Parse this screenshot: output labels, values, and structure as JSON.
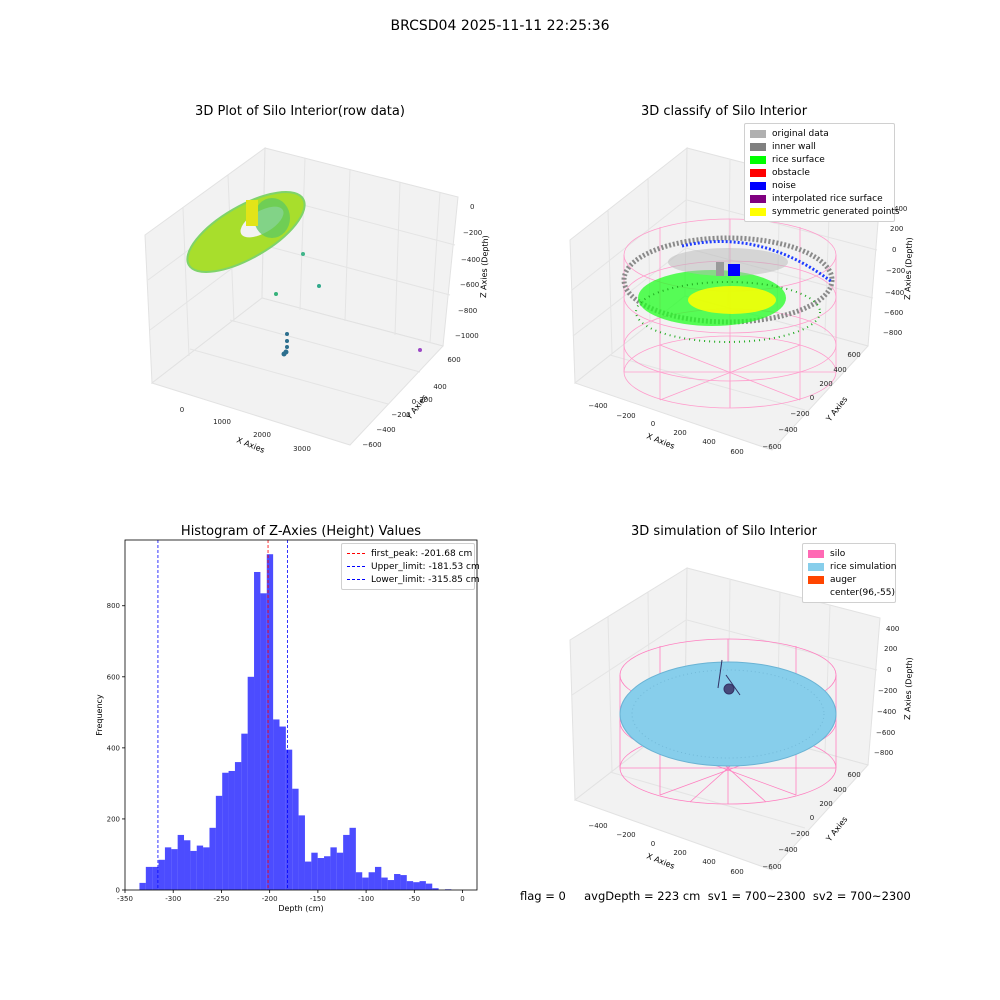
{
  "figure": {
    "title": "BRCSD04 2025-11-11 22:25:36",
    "footer": "flag = 0     avgDepth = 223 cm  sv1 = 700~2300  sv2 = 700~2300"
  },
  "plots": {
    "raw": {
      "title": "3D Plot of Silo Interior(row data)",
      "xlabel": "X Axies",
      "ylabel": "Y Axies",
      "zlabel": "Z Axies (Depth)",
      "xticks": [
        "0",
        "1000",
        "2000",
        "3000"
      ],
      "yticks": [
        "600",
        "400",
        "200",
        "0",
        "−200",
        "−400",
        "−600"
      ],
      "zticks": [
        "0",
        "−200",
        "−400",
        "−600",
        "−800",
        "−1000"
      ]
    },
    "classify": {
      "title": "3D classify of Silo Interior",
      "xlabel": "X Axies",
      "ylabel": "Y Axies",
      "zlabel": "Z Axies (Depth)",
      "xticks": [
        "−400",
        "−200",
        "0",
        "200",
        "400",
        "600"
      ],
      "yticks": [
        "600",
        "400",
        "200",
        "0",
        "−200",
        "−400",
        "−600"
      ],
      "zticks": [
        "400",
        "200",
        "0",
        "−200",
        "−400",
        "−600",
        "−800"
      ],
      "legend": [
        {
          "label": "original data",
          "color": "#b0b0b0"
        },
        {
          "label": "inner wall",
          "color": "#808080"
        },
        {
          "label": "rice surface",
          "color": "#00ff00"
        },
        {
          "label": "obstacle",
          "color": "#ff0000"
        },
        {
          "label": "noise",
          "color": "#0000ff"
        },
        {
          "label": "interpolated rice surface",
          "color": "#800080"
        },
        {
          "label": "symmetric generated points",
          "color": "#ffff00"
        }
      ]
    },
    "simulation": {
      "title": "3D simulation of Silo Interior",
      "xlabel": "X Axies",
      "ylabel": "Y Axies",
      "zlabel": "Z Axies (Depth)",
      "xticks": [
        "−400",
        "−200",
        "0",
        "200",
        "400",
        "600"
      ],
      "yticks": [
        "600",
        "400",
        "200",
        "0",
        "−200",
        "−400",
        "−600"
      ],
      "zticks": [
        "400",
        "200",
        "0",
        "−200",
        "−400",
        "−600",
        "−800"
      ],
      "legend": [
        {
          "label": "silo",
          "color": "#ff69b4"
        },
        {
          "label": "rice simulation",
          "color": "#87ceeb"
        },
        {
          "label": "auger",
          "color": "#ff4500"
        },
        {
          "label": "center(96,-55)",
          "color": ""
        }
      ]
    }
  },
  "chart_data": [
    {
      "type": "histogram",
      "title": "Histogram of Z-Axies (Height) Values",
      "xlabel": "Depth (cm)",
      "ylabel": "Frequency",
      "xlim": [
        -350,
        15
      ],
      "ylim": [
        0,
        985
      ],
      "xticks": [
        -350,
        -300,
        -250,
        -200,
        -150,
        -100,
        -50,
        0
      ],
      "yticks": [
        0,
        200,
        400,
        600,
        800
      ],
      "bar_color": "#0000ff",
      "bin_start": -335,
      "bin_width": 6.6,
      "values": [
        20,
        65,
        65,
        85,
        120,
        115,
        155,
        140,
        110,
        125,
        120,
        175,
        265,
        330,
        335,
        360,
        440,
        600,
        895,
        835,
        945,
        480,
        460,
        395,
        285,
        210,
        80,
        105,
        90,
        95,
        120,
        105,
        155,
        175,
        50,
        35,
        50,
        65,
        35,
        28,
        45,
        42,
        25,
        22,
        25,
        18,
        5,
        0,
        2
      ],
      "legend_position": "upper right",
      "lines": [
        {
          "label": "first_peak: -201.68 cm",
          "x": -201.68,
          "color": "#ff0000"
        },
        {
          "label": "Upper_limit: -181.53 cm",
          "x": -181.53,
          "color": "#0000ff"
        },
        {
          "label": "Lower_limit: -315.85 cm",
          "x": -315.85,
          "color": "#0000ff"
        }
      ]
    }
  ]
}
